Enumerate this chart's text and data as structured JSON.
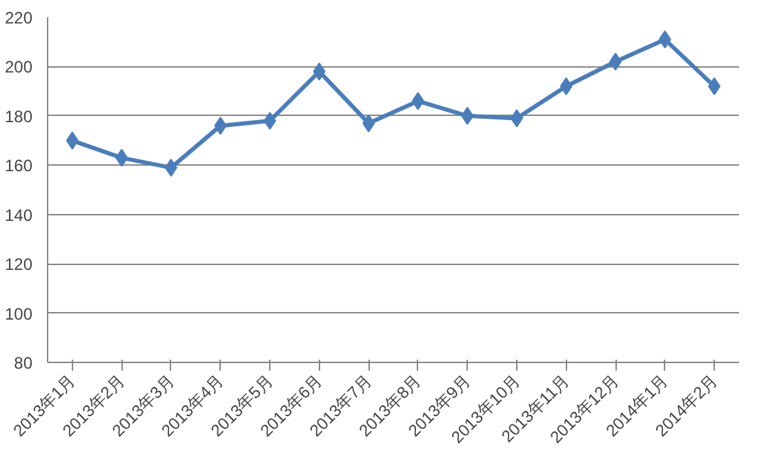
{
  "chart_data": {
    "type": "line",
    "categories": [
      "2013年1月",
      "2013年2月",
      "2013年3月",
      "2013年4月",
      "2013年5月",
      "2013年6月",
      "2013年7月",
      "2013年8月",
      "2013年9月",
      "2013年10月",
      "2013年11月",
      "2013年12月",
      "2014年1月",
      "2014年2月"
    ],
    "series": [
      {
        "color": "#4a7ebb",
        "values": [
          170,
          163,
          159,
          176,
          178,
          198,
          177,
          186,
          180,
          179,
          192,
          202,
          211,
          192
        ]
      }
    ],
    "ylim": [
      80,
      220
    ],
    "yticks": [
      80,
      100,
      120,
      140,
      160,
      180,
      200,
      220
    ],
    "grid": "y",
    "marker": "diamond",
    "line_style": "solid"
  }
}
